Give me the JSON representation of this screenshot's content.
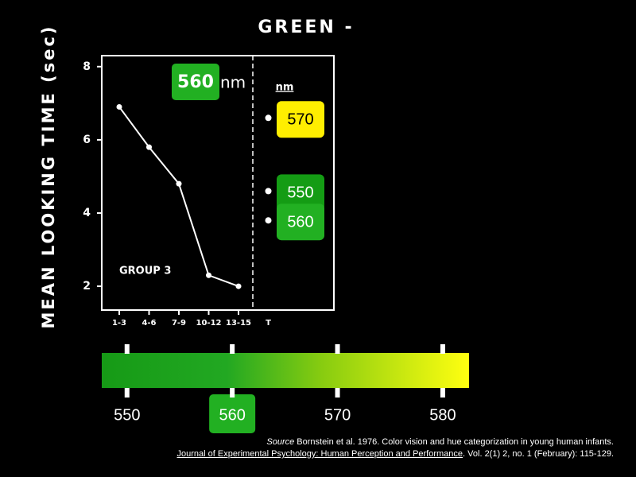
{
  "chart_data": {
    "type": "line",
    "title": "GREEN -",
    "y_label": "MEAN LOOKING TIME (sec)",
    "categories": [
      "1-3",
      "4-6",
      "7-9",
      "10-12",
      "13-15"
    ],
    "values": [
      6.9,
      5.8,
      4.8,
      2.3,
      2.0
    ],
    "color": "#ffffff",
    "ylim": [
      1.35,
      8.3
    ],
    "yticks": [
      2,
      4,
      6,
      8
    ],
    "annotation": "560",
    "annotation_unit": "nm",
    "annotation_color": "#22b022",
    "group_label": "GROUP 3",
    "test": {
      "category": "T",
      "unit_label": "nm",
      "values": [
        6.6,
        4.6,
        3.8
      ],
      "labels": [
        "570",
        "550",
        "560"
      ],
      "colors": [
        "#ffee00",
        "#149c14",
        "#22b022"
      ]
    }
  },
  "spectrum": {
    "xlim": [
      547.6,
      582.5
    ],
    "ticks": [
      550,
      560,
      570,
      580
    ],
    "highlight": 560,
    "highlight_color": "#22b022"
  },
  "source": {
    "lead": "Source",
    "text": " Bornstein et al. 1976. Color vision and hue categorization in young human infants.",
    "journal": "Journal of Experimental Psychology: Human Perception and Performance",
    "details": ". Vol. 2(1) 2, no. 1 (February): 115-129."
  }
}
